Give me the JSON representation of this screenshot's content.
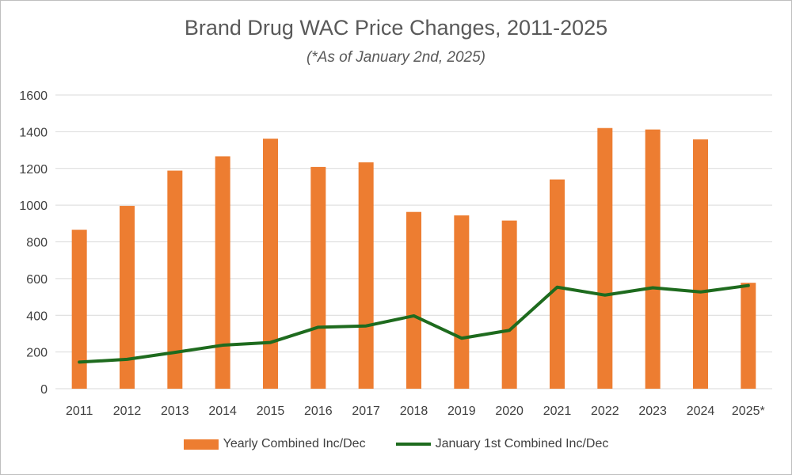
{
  "chart_data": {
    "type": "bar",
    "title": "Brand Drug WAC Price Changes, 2011-2025",
    "subtitle": "(*As of January 2nd, 2025)",
    "categories": [
      "2011",
      "2012",
      "2013",
      "2014",
      "2015",
      "2016",
      "2017",
      "2018",
      "2019",
      "2020",
      "2021",
      "2022",
      "2023",
      "2024",
      "2025*"
    ],
    "series": [
      {
        "name": "Yearly Combined Inc/Dec",
        "type": "bar",
        "color": "#ED7D31",
        "values": [
          866,
          996,
          1188,
          1266,
          1362,
          1208,
          1233,
          963,
          944,
          916,
          1140,
          1420,
          1412,
          1358,
          577
        ]
      },
      {
        "name": "January 1st Combined Inc/Dec",
        "type": "line",
        "color": "#1E6B1E",
        "values": [
          145,
          160,
          198,
          237,
          252,
          335,
          342,
          397,
          275,
          318,
          553,
          510,
          550,
          527,
          562
        ]
      }
    ],
    "ylim": [
      0,
      1600
    ],
    "yticks": [
      "0",
      "200",
      "400",
      "600",
      "800",
      "1000",
      "1200",
      "1400",
      "1600"
    ],
    "xlabel": "",
    "ylabel": "",
    "grid": true,
    "legend": "bottom"
  }
}
